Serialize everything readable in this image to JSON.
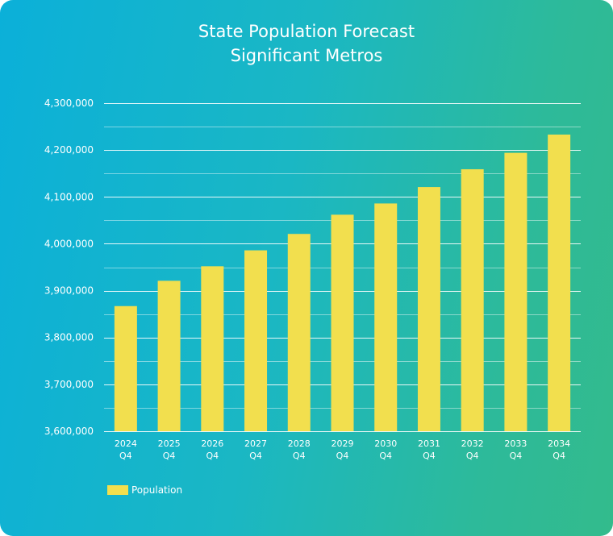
{
  "chart_data": {
    "type": "bar",
    "title": "State Population Forecast",
    "subtitle": "Significant Metros",
    "categories": [
      [
        "2024",
        "Q4"
      ],
      [
        "2025",
        "Q4"
      ],
      [
        "2026",
        "Q4"
      ],
      [
        "2027",
        "Q4"
      ],
      [
        "2028",
        "Q4"
      ],
      [
        "2029",
        "Q4"
      ],
      [
        "2030",
        "Q4"
      ],
      [
        "2031",
        "Q4"
      ],
      [
        "2032",
        "Q4"
      ],
      [
        "2033",
        "Q4"
      ],
      [
        "2034",
        "Q4"
      ]
    ],
    "series": [
      {
        "name": "Population",
        "color": "#f2df4e",
        "values": [
          3867000,
          3921000,
          3952000,
          3986000,
          4021000,
          4062000,
          4086000,
          4121000,
          4159000,
          4194000,
          4233000
        ]
      }
    ],
    "ylim": [
      3600000,
      4300000
    ],
    "yticks": [
      "3,600,000",
      "3,700,000",
      "3,800,000",
      "3,900,000",
      "4,000,000",
      "4,100,000",
      "4,200,000",
      "4,300,000"
    ],
    "grid": true,
    "legend_position": "bottom-left"
  }
}
